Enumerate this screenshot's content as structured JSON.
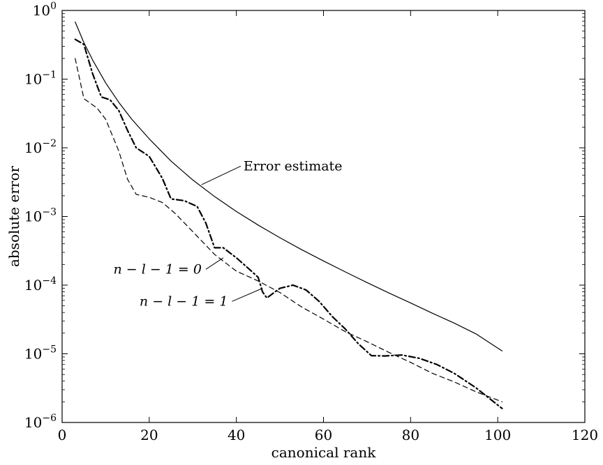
{
  "chart_data": {
    "type": "line",
    "title": "",
    "xlabel": "canonical rank",
    "ylabel": "absolute error",
    "xlim": [
      0,
      120
    ],
    "ylim": [
      1e-06,
      1
    ],
    "yscale": "log",
    "grid": false,
    "legend": "none",
    "x_ticks": [
      {
        "value": 0,
        "label": "0"
      },
      {
        "value": 20,
        "label": "20"
      },
      {
        "value": 40,
        "label": "40"
      },
      {
        "value": 60,
        "label": "60"
      },
      {
        "value": 80,
        "label": "80"
      },
      {
        "value": 100,
        "label": "100"
      },
      {
        "value": 120,
        "label": "120"
      }
    ],
    "y_ticks": [
      {
        "value": 1e-06,
        "base": "10",
        "exp": "−6"
      },
      {
        "value": 1e-05,
        "base": "10",
        "exp": "−5"
      },
      {
        "value": 0.0001,
        "base": "10",
        "exp": "−4"
      },
      {
        "value": 0.001,
        "base": "10",
        "exp": "−3"
      },
      {
        "value": 0.01,
        "base": "10",
        "exp": "−2"
      },
      {
        "value": 0.1,
        "base": "10",
        "exp": "−1"
      },
      {
        "value": 1,
        "base": "10",
        "exp": "0"
      }
    ],
    "series": [
      {
        "name": "Error estimate",
        "style": "solid",
        "color": "#000000",
        "label_anchor": {
          "x": 32,
          "y": 0.0029
        },
        "label_text_at": {
          "x": 41,
          "y": 0.0054
        },
        "x": [
          3,
          5,
          7,
          10,
          13,
          16,
          20,
          25,
          30,
          35,
          40,
          45,
          50,
          55,
          60,
          65,
          70,
          75,
          80,
          85,
          90,
          95,
          101
        ],
        "y": [
          0.68,
          0.34,
          0.19,
          0.088,
          0.046,
          0.026,
          0.0135,
          0.0064,
          0.0034,
          0.00195,
          0.00118,
          0.00075,
          0.00049,
          0.000328,
          0.000225,
          0.000156,
          0.000109,
          7.7e-05,
          5.5e-05,
          3.9e-05,
          2.8e-05,
          1.95e-05,
          1.1e-05
        ]
      },
      {
        "name": "n − l − 1 = 0",
        "style": "dashdot",
        "color": "#000000",
        "label_anchor": {
          "x": 37,
          "y": 0.00025
        },
        "label_text_at": {
          "x": 33,
          "y": 0.00017
        },
        "x": [
          3,
          5,
          7,
          9,
          11,
          13,
          15,
          17,
          20,
          23,
          25,
          28,
          31,
          33,
          35,
          37,
          40,
          43,
          45,
          46,
          47,
          50,
          53,
          56,
          59,
          62,
          65,
          68,
          71,
          74,
          78,
          82,
          86,
          90,
          95,
          101
        ],
        "y": [
          0.38,
          0.32,
          0.12,
          0.055,
          0.05,
          0.035,
          0.018,
          0.01,
          0.0075,
          0.0036,
          0.0018,
          0.0017,
          0.0014,
          0.0008,
          0.00035,
          0.00035,
          0.00025,
          0.00017,
          0.00013,
          8e-05,
          6.5e-05,
          9e-05,
          0.0001,
          8.5e-05,
          5.8e-05,
          3.5e-05,
          2.3e-05,
          1.4e-05,
          9.4e-06,
          9.3e-06,
          9.6e-06,
          8.6e-06,
          7e-06,
          5.2e-06,
          3.2e-06,
          1.6e-06
        ]
      },
      {
        "name": "n − l − 1 = 1",
        "style": "dashed",
        "color": "#000000",
        "label_anchor": {
          "x": 46,
          "y": 9e-05
        },
        "label_text_at": {
          "x": 39,
          "y": 5.8e-05
        },
        "x": [
          3,
          5,
          8,
          10,
          13,
          15,
          17,
          20,
          23,
          26,
          30,
          35,
          40,
          45,
          50,
          55,
          60,
          65,
          70,
          75,
          80,
          85,
          90,
          95,
          101
        ],
        "y": [
          0.2,
          0.052,
          0.038,
          0.026,
          0.009,
          0.0035,
          0.0021,
          0.0019,
          0.0016,
          0.0011,
          0.0006,
          0.00028,
          0.00016,
          0.000115,
          7.8e-05,
          4.8e-05,
          3.2e-05,
          2.1e-05,
          1.5e-05,
          1.05e-05,
          7.5e-06,
          5.2e-06,
          3.9e-06,
          2.8e-06,
          2e-06
        ]
      }
    ]
  }
}
